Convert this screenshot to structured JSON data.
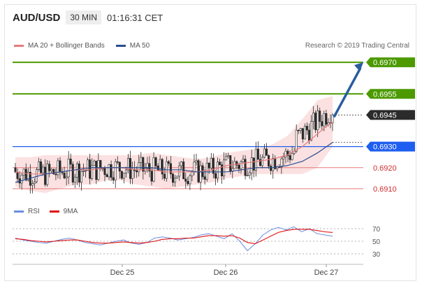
{
  "header": {
    "symbol": "AUD/USD",
    "timeframe": "30 MIN",
    "time": "01:16:31 CET"
  },
  "legend": {
    "ma20_label": "MA 20 + Bollinger Bands",
    "ma50_label": "MA 50",
    "credit": "Research © 2019 Trading Central"
  },
  "rsi_legend": {
    "rsi_label": "RSI",
    "ma_label": "9MA"
  },
  "colors": {
    "ma20": "#e87a7a",
    "ma50": "#2a4d8f",
    "band_fill": "#fbe1e1",
    "resistance": "#4c9a00",
    "pivot": "#1e5ef0",
    "support": "#e87a7a",
    "arrow": "#2a5d9f",
    "rsi": "#6b8de0",
    "rsi_ma": "#e01010",
    "candle": "#2a2a2a"
  },
  "chart_data": [
    {
      "type": "candlestick",
      "price_scale": [
        0.6905,
        0.6975
      ],
      "x_ticks": [
        "Dec 25",
        "Dec 26",
        "Dec 27"
      ],
      "levels": [
        {
          "label": "0.6970",
          "value": 0.697,
          "kind": "resistance"
        },
        {
          "label": "0.6955",
          "value": 0.6955,
          "kind": "resistance"
        },
        {
          "label": "0.6945",
          "value": 0.6945,
          "kind": "last"
        },
        {
          "label": "0.6930",
          "value": 0.693,
          "kind": "pivot"
        },
        {
          "label": "0.6920",
          "value": 0.692,
          "kind": "support"
        },
        {
          "label": "0.6910",
          "value": 0.691,
          "kind": "support"
        }
      ],
      "series": [
        {
          "name": "MA 20",
          "values": [
            0.6918,
            0.6917,
            0.6917,
            0.6918,
            0.6919,
            0.6919,
            0.692,
            0.692,
            0.6919,
            0.6919,
            0.6918,
            0.6918,
            0.6918,
            0.6919,
            0.6921,
            0.6922,
            0.6923,
            0.6924,
            0.6926,
            0.693,
            0.6936,
            0.6942
          ]
        },
        {
          "name": "MA 50",
          "values": [
            0.6913,
            0.6915,
            0.6917,
            0.6918,
            0.6919,
            0.692,
            0.692,
            0.692,
            0.692,
            0.692,
            0.6919,
            0.6919,
            0.6918,
            0.6918,
            0.6918,
            0.6919,
            0.692,
            0.692,
            0.6921,
            0.6923,
            0.6927,
            0.6932
          ]
        }
      ],
      "projection": {
        "from": 0.6944,
        "to": 0.697
      }
    },
    {
      "type": "line",
      "name": "RSI",
      "y_ticks": [
        70,
        50,
        30
      ],
      "ylim": [
        20,
        80
      ],
      "series": [
        {
          "name": "RSI",
          "values": [
            55,
            52,
            50,
            48,
            47,
            50,
            53,
            55,
            52,
            48,
            46,
            44,
            47,
            50,
            52,
            47,
            45,
            48,
            55,
            57,
            55,
            52,
            54,
            56,
            60,
            62,
            58,
            54,
            62,
            50,
            35,
            46,
            60,
            68,
            72,
            68,
            73,
            65,
            70,
            62,
            60,
            58
          ]
        },
        {
          "name": "9MA",
          "values": [
            54,
            53,
            51,
            50,
            49,
            50,
            51,
            52,
            52,
            50,
            48,
            47,
            47,
            48,
            49,
            48,
            47,
            48,
            50,
            53,
            54,
            54,
            55,
            55,
            57,
            59,
            59,
            58,
            59,
            55,
            48,
            46,
            52,
            58,
            64,
            67,
            69,
            69,
            69,
            67,
            65,
            64
          ]
        }
      ]
    }
  ]
}
